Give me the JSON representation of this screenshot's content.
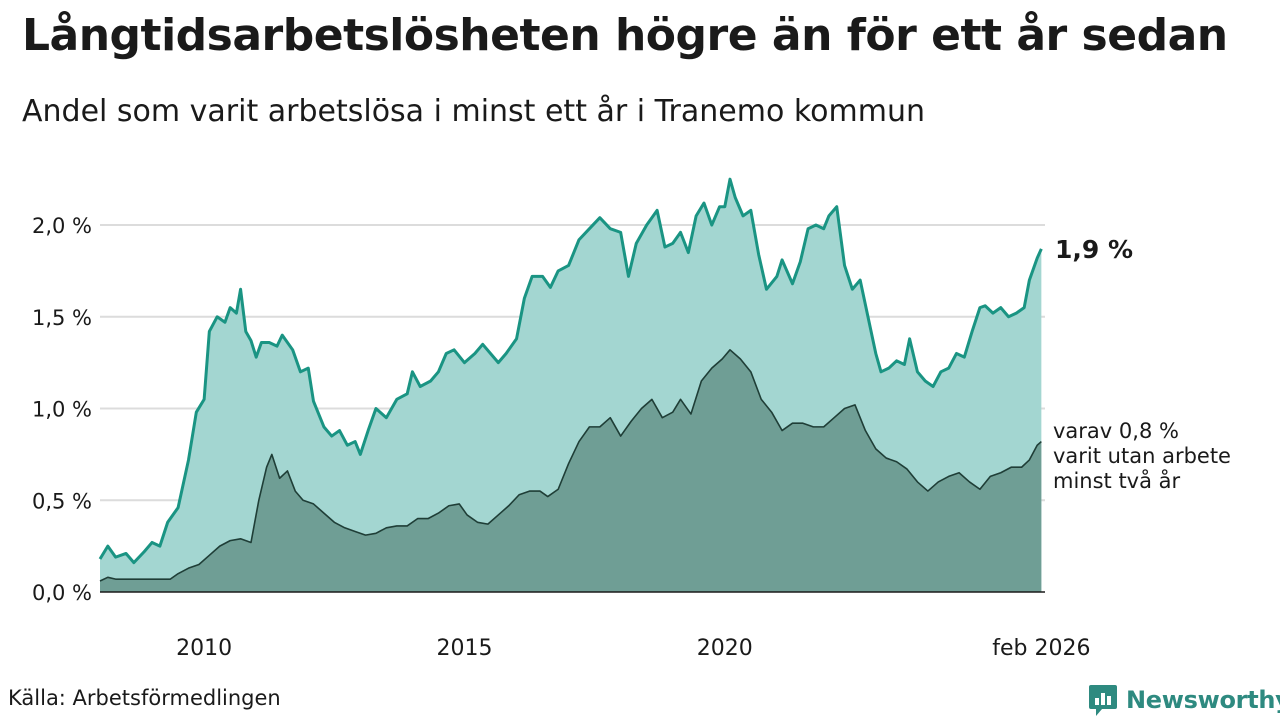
{
  "title": "Långtidsarbetslösheten högre än för ett år sedan",
  "subtitle": "Andel som varit arbetslösa i minst ett år i Tranemo kommun",
  "source": "Källa: Arbetsförmedlingen",
  "brand": "Newsworthy",
  "colors": {
    "upper_fill": "#a3d6d1",
    "upper_line": "#1a9483",
    "lower_fill": "#6f9e95",
    "lower_line": "#1f3e37",
    "grid": "#dcdcdc",
    "brand": "#2e8a80"
  },
  "chart_data": {
    "type": "area",
    "title": "Långtidsarbetslösheten högre än för ett år sedan",
    "ylim": [
      0,
      2.3
    ],
    "xlim": [
      2008.0,
      2026.15
    ],
    "yticks": [
      {
        "value": 0.0,
        "label": "0,0 %"
      },
      {
        "value": 0.5,
        "label": "0,5 %"
      },
      {
        "value": 1.0,
        "label": "1,0 %"
      },
      {
        "value": 1.5,
        "label": "1,5 %"
      },
      {
        "value": 2.0,
        "label": "2,0 %"
      }
    ],
    "xticks": [
      {
        "value": 2010,
        "label": "2010"
      },
      {
        "value": 2015,
        "label": "2015"
      },
      {
        "value": 2020,
        "label": "2020"
      },
      {
        "value": 2026.08,
        "label": "feb 2026"
      }
    ],
    "annotations": {
      "end_value_label": "1,9 %",
      "lower_label_lines": [
        "varav 0,8 %",
        "varit utan arbete",
        "minst två år"
      ]
    },
    "series": [
      {
        "name": "Minst ett år",
        "points": [
          [
            2008.0,
            0.18
          ],
          [
            2008.15,
            0.25
          ],
          [
            2008.3,
            0.19
          ],
          [
            2008.5,
            0.21
          ],
          [
            2008.65,
            0.16
          ],
          [
            2008.85,
            0.22
          ],
          [
            2009.0,
            0.27
          ],
          [
            2009.15,
            0.25
          ],
          [
            2009.3,
            0.38
          ],
          [
            2009.5,
            0.46
          ],
          [
            2009.7,
            0.72
          ],
          [
            2009.85,
            0.98
          ],
          [
            2010.0,
            1.05
          ],
          [
            2010.1,
            1.42
          ],
          [
            2010.25,
            1.5
          ],
          [
            2010.4,
            1.47
          ],
          [
            2010.5,
            1.55
          ],
          [
            2010.62,
            1.52
          ],
          [
            2010.7,
            1.65
          ],
          [
            2010.8,
            1.42
          ],
          [
            2010.9,
            1.37
          ],
          [
            2011.0,
            1.28
          ],
          [
            2011.1,
            1.36
          ],
          [
            2011.25,
            1.36
          ],
          [
            2011.4,
            1.34
          ],
          [
            2011.5,
            1.4
          ],
          [
            2011.7,
            1.32
          ],
          [
            2011.85,
            1.2
          ],
          [
            2012.0,
            1.22
          ],
          [
            2012.1,
            1.04
          ],
          [
            2012.3,
            0.9
          ],
          [
            2012.45,
            0.85
          ],
          [
            2012.6,
            0.88
          ],
          [
            2012.75,
            0.8
          ],
          [
            2012.9,
            0.82
          ],
          [
            2013.0,
            0.75
          ],
          [
            2013.15,
            0.88
          ],
          [
            2013.3,
            1.0
          ],
          [
            2013.5,
            0.95
          ],
          [
            2013.7,
            1.05
          ],
          [
            2013.9,
            1.08
          ],
          [
            2014.0,
            1.2
          ],
          [
            2014.15,
            1.12
          ],
          [
            2014.35,
            1.15
          ],
          [
            2014.5,
            1.2
          ],
          [
            2014.65,
            1.3
          ],
          [
            2014.8,
            1.32
          ],
          [
            2015.0,
            1.25
          ],
          [
            2015.2,
            1.3
          ],
          [
            2015.35,
            1.35
          ],
          [
            2015.5,
            1.3
          ],
          [
            2015.65,
            1.25
          ],
          [
            2015.8,
            1.3
          ],
          [
            2016.0,
            1.38
          ],
          [
            2016.15,
            1.6
          ],
          [
            2016.3,
            1.72
          ],
          [
            2016.5,
            1.72
          ],
          [
            2016.65,
            1.66
          ],
          [
            2016.8,
            1.75
          ],
          [
            2017.0,
            1.78
          ],
          [
            2017.2,
            1.92
          ],
          [
            2017.4,
            1.98
          ],
          [
            2017.6,
            2.04
          ],
          [
            2017.8,
            1.98
          ],
          [
            2018.0,
            1.96
          ],
          [
            2018.15,
            1.72
          ],
          [
            2018.3,
            1.9
          ],
          [
            2018.5,
            2.0
          ],
          [
            2018.7,
            2.08
          ],
          [
            2018.85,
            1.88
          ],
          [
            2019.0,
            1.9
          ],
          [
            2019.15,
            1.96
          ],
          [
            2019.3,
            1.85
          ],
          [
            2019.45,
            2.05
          ],
          [
            2019.6,
            2.12
          ],
          [
            2019.75,
            2.0
          ],
          [
            2019.9,
            2.1
          ],
          [
            2020.0,
            2.1
          ],
          [
            2020.1,
            2.25
          ],
          [
            2020.2,
            2.15
          ],
          [
            2020.35,
            2.05
          ],
          [
            2020.5,
            2.08
          ],
          [
            2020.65,
            1.84
          ],
          [
            2020.8,
            1.65
          ],
          [
            2021.0,
            1.72
          ],
          [
            2021.1,
            1.81
          ],
          [
            2021.3,
            1.68
          ],
          [
            2021.45,
            1.8
          ],
          [
            2021.6,
            1.98
          ],
          [
            2021.75,
            2.0
          ],
          [
            2021.9,
            1.98
          ],
          [
            2022.0,
            2.05
          ],
          [
            2022.15,
            2.1
          ],
          [
            2022.3,
            1.78
          ],
          [
            2022.45,
            1.65
          ],
          [
            2022.6,
            1.7
          ],
          [
            2022.75,
            1.5
          ],
          [
            2022.9,
            1.3
          ],
          [
            2023.0,
            1.2
          ],
          [
            2023.15,
            1.22
          ],
          [
            2023.3,
            1.26
          ],
          [
            2023.45,
            1.24
          ],
          [
            2023.55,
            1.38
          ],
          [
            2023.7,
            1.2
          ],
          [
            2023.85,
            1.15
          ],
          [
            2024.0,
            1.12
          ],
          [
            2024.15,
            1.2
          ],
          [
            2024.3,
            1.22
          ],
          [
            2024.45,
            1.3
          ],
          [
            2024.6,
            1.28
          ],
          [
            2024.75,
            1.42
          ],
          [
            2024.9,
            1.55
          ],
          [
            2025.0,
            1.56
          ],
          [
            2025.15,
            1.52
          ],
          [
            2025.3,
            1.55
          ],
          [
            2025.45,
            1.5
          ],
          [
            2025.6,
            1.52
          ],
          [
            2025.75,
            1.55
          ],
          [
            2025.85,
            1.7
          ],
          [
            2026.0,
            1.82
          ],
          [
            2026.08,
            1.87
          ]
        ]
      },
      {
        "name": "Minst två år",
        "points": [
          [
            2008.0,
            0.06
          ],
          [
            2008.15,
            0.08
          ],
          [
            2008.3,
            0.07
          ],
          [
            2008.6,
            0.07
          ],
          [
            2009.0,
            0.07
          ],
          [
            2009.35,
            0.07
          ],
          [
            2009.5,
            0.1
          ],
          [
            2009.7,
            0.13
          ],
          [
            2009.9,
            0.15
          ],
          [
            2010.1,
            0.2
          ],
          [
            2010.3,
            0.25
          ],
          [
            2010.5,
            0.28
          ],
          [
            2010.7,
            0.29
          ],
          [
            2010.9,
            0.27
          ],
          [
            2011.05,
            0.5
          ],
          [
            2011.2,
            0.68
          ],
          [
            2011.3,
            0.75
          ],
          [
            2011.45,
            0.62
          ],
          [
            2011.6,
            0.66
          ],
          [
            2011.75,
            0.55
          ],
          [
            2011.9,
            0.5
          ],
          [
            2012.1,
            0.48
          ],
          [
            2012.3,
            0.43
          ],
          [
            2012.5,
            0.38
          ],
          [
            2012.7,
            0.35
          ],
          [
            2012.9,
            0.33
          ],
          [
            2013.1,
            0.31
          ],
          [
            2013.3,
            0.32
          ],
          [
            2013.5,
            0.35
          ],
          [
            2013.7,
            0.36
          ],
          [
            2013.9,
            0.36
          ],
          [
            2014.1,
            0.4
          ],
          [
            2014.3,
            0.4
          ],
          [
            2014.5,
            0.43
          ],
          [
            2014.7,
            0.47
          ],
          [
            2014.9,
            0.48
          ],
          [
            2015.05,
            0.42
          ],
          [
            2015.25,
            0.38
          ],
          [
            2015.45,
            0.37
          ],
          [
            2015.65,
            0.42
          ],
          [
            2015.85,
            0.47
          ],
          [
            2016.05,
            0.53
          ],
          [
            2016.25,
            0.55
          ],
          [
            2016.45,
            0.55
          ],
          [
            2016.6,
            0.52
          ],
          [
            2016.8,
            0.56
          ],
          [
            2017.0,
            0.7
          ],
          [
            2017.2,
            0.82
          ],
          [
            2017.4,
            0.9
          ],
          [
            2017.6,
            0.9
          ],
          [
            2017.8,
            0.95
          ],
          [
            2018.0,
            0.85
          ],
          [
            2018.2,
            0.93
          ],
          [
            2018.4,
            1.0
          ],
          [
            2018.6,
            1.05
          ],
          [
            2018.8,
            0.95
          ],
          [
            2019.0,
            0.98
          ],
          [
            2019.15,
            1.05
          ],
          [
            2019.35,
            0.97
          ],
          [
            2019.55,
            1.15
          ],
          [
            2019.75,
            1.22
          ],
          [
            2019.95,
            1.27
          ],
          [
            2020.1,
            1.32
          ],
          [
            2020.3,
            1.27
          ],
          [
            2020.5,
            1.2
          ],
          [
            2020.7,
            1.05
          ],
          [
            2020.9,
            0.98
          ],
          [
            2021.1,
            0.88
          ],
          [
            2021.3,
            0.92
          ],
          [
            2021.5,
            0.92
          ],
          [
            2021.7,
            0.9
          ],
          [
            2021.9,
            0.9
          ],
          [
            2022.1,
            0.95
          ],
          [
            2022.3,
            1.0
          ],
          [
            2022.5,
            1.02
          ],
          [
            2022.7,
            0.88
          ],
          [
            2022.9,
            0.78
          ],
          [
            2023.1,
            0.73
          ],
          [
            2023.3,
            0.71
          ],
          [
            2023.5,
            0.67
          ],
          [
            2023.7,
            0.6
          ],
          [
            2023.9,
            0.55
          ],
          [
            2024.1,
            0.6
          ],
          [
            2024.3,
            0.63
          ],
          [
            2024.5,
            0.65
          ],
          [
            2024.7,
            0.6
          ],
          [
            2024.9,
            0.56
          ],
          [
            2025.1,
            0.63
          ],
          [
            2025.3,
            0.65
          ],
          [
            2025.5,
            0.68
          ],
          [
            2025.7,
            0.68
          ],
          [
            2025.85,
            0.72
          ],
          [
            2026.0,
            0.8
          ],
          [
            2026.08,
            0.82
          ]
        ]
      }
    ]
  }
}
